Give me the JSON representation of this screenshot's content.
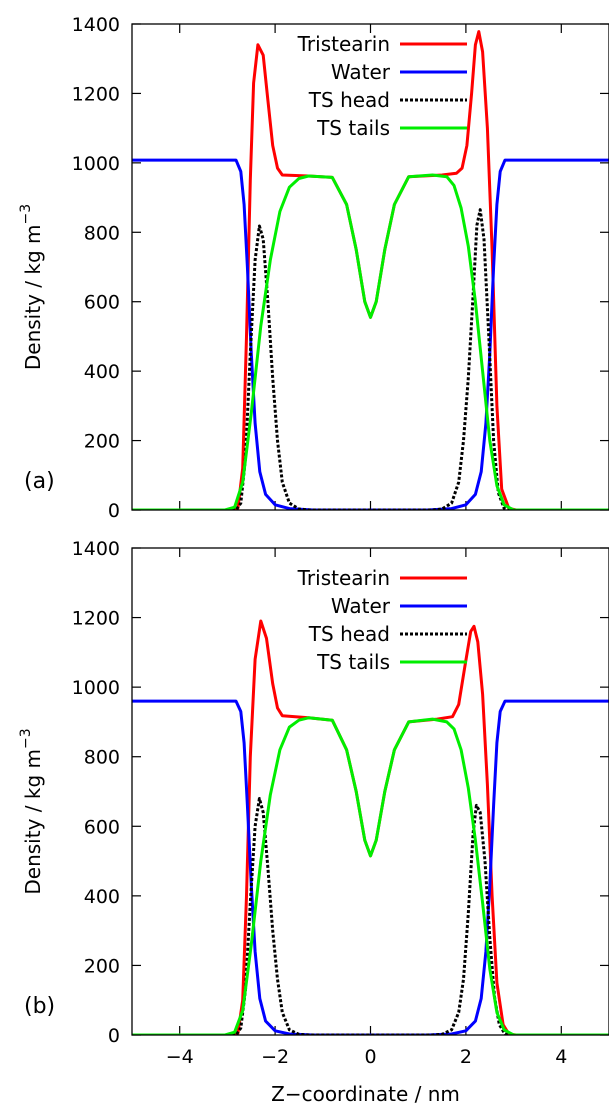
{
  "chart_data": [
    {
      "type": "line",
      "panel_label": "(a)",
      "xlabel": "",
      "ylabel": "Density / kg m",
      "ylabel_superscript": "−3",
      "xlim": [
        -5,
        5
      ],
      "ylim": [
        0,
        1400
      ],
      "x_ticks": [
        -4,
        -2,
        0,
        2,
        4
      ],
      "y_ticks": [
        0,
        200,
        400,
        600,
        800,
        1000,
        1200,
        1400
      ],
      "show_x_tick_labels": false,
      "grid": false,
      "legend_position": "top-center",
      "series": [
        {
          "name": "Tristearin",
          "color": "#ff0000",
          "dash": "solid",
          "points": [
            [
              -5,
              0
            ],
            [
              -2.95,
              0
            ],
            [
              -2.78,
              5
            ],
            [
              -2.68,
              120
            ],
            [
              -2.6,
              500
            ],
            [
              -2.52,
              950
            ],
            [
              -2.45,
              1230
            ],
            [
              -2.36,
              1340
            ],
            [
              -2.25,
              1310
            ],
            [
              -2.15,
              1180
            ],
            [
              -2.05,
              1050
            ],
            [
              -1.95,
              985
            ],
            [
              -1.85,
              965
            ],
            [
              -1.3,
              962
            ],
            [
              -0.8,
              958
            ],
            [
              -0.5,
              880
            ],
            [
              -0.3,
              750
            ],
            [
              -0.12,
              600
            ],
            [
              0,
              555
            ],
            [
              0.12,
              600
            ],
            [
              0.3,
              750
            ],
            [
              0.5,
              880
            ],
            [
              0.8,
              960
            ],
            [
              1.5,
              965
            ],
            [
              1.8,
              970
            ],
            [
              1.92,
              985
            ],
            [
              2.02,
              1050
            ],
            [
              2.12,
              1200
            ],
            [
              2.2,
              1340
            ],
            [
              2.27,
              1378
            ],
            [
              2.35,
              1320
            ],
            [
              2.45,
              1100
            ],
            [
              2.55,
              750
            ],
            [
              2.65,
              300
            ],
            [
              2.75,
              60
            ],
            [
              2.9,
              5
            ],
            [
              3.05,
              0
            ],
            [
              5,
              0
            ]
          ]
        },
        {
          "name": "Water",
          "color": "#0000ff",
          "dash": "solid",
          "points": [
            [
              -5,
              1008
            ],
            [
              -2.82,
              1008
            ],
            [
              -2.72,
              975
            ],
            [
              -2.65,
              880
            ],
            [
              -2.58,
              700
            ],
            [
              -2.5,
              450
            ],
            [
              -2.42,
              250
            ],
            [
              -2.32,
              110
            ],
            [
              -2.2,
              45
            ],
            [
              -2.0,
              15
            ],
            [
              -1.7,
              4
            ],
            [
              -1.2,
              0
            ],
            [
              1.2,
              0
            ],
            [
              1.7,
              4
            ],
            [
              2.0,
              15
            ],
            [
              2.2,
              45
            ],
            [
              2.32,
              110
            ],
            [
              2.42,
              250
            ],
            [
              2.5,
              450
            ],
            [
              2.58,
              700
            ],
            [
              2.65,
              880
            ],
            [
              2.72,
              975
            ],
            [
              2.82,
              1008
            ],
            [
              5,
              1008
            ]
          ]
        },
        {
          "name": "TS head",
          "color": "#000000",
          "dash": "dotted",
          "points": [
            [
              -5,
              0
            ],
            [
              -2.82,
              0
            ],
            [
              -2.72,
              20
            ],
            [
              -2.62,
              150
            ],
            [
              -2.52,
              450
            ],
            [
              -2.42,
              720
            ],
            [
              -2.33,
              818
            ],
            [
              -2.25,
              780
            ],
            [
              -2.15,
              600
            ],
            [
              -2.05,
              380
            ],
            [
              -1.95,
              200
            ],
            [
              -1.85,
              80
            ],
            [
              -1.7,
              20
            ],
            [
              -1.5,
              3
            ],
            [
              -1.3,
              0
            ],
            [
              1.3,
              0
            ],
            [
              1.5,
              3
            ],
            [
              1.7,
              20
            ],
            [
              1.85,
              80
            ],
            [
              1.95,
              200
            ],
            [
              2.05,
              380
            ],
            [
              2.15,
              620
            ],
            [
              2.23,
              820
            ],
            [
              2.3,
              865
            ],
            [
              2.38,
              780
            ],
            [
              2.48,
              500
            ],
            [
              2.58,
              200
            ],
            [
              2.68,
              50
            ],
            [
              2.8,
              5
            ],
            [
              2.9,
              0
            ],
            [
              5,
              0
            ]
          ]
        },
        {
          "name": "TS tails",
          "color": "#00ee00",
          "dash": "solid",
          "points": [
            [
              -5,
              0
            ],
            [
              -3.05,
              0
            ],
            [
              -2.85,
              8
            ],
            [
              -2.68,
              80
            ],
            [
              -2.5,
              280
            ],
            [
              -2.3,
              530
            ],
            [
              -2.1,
              720
            ],
            [
              -1.9,
              860
            ],
            [
              -1.7,
              930
            ],
            [
              -1.5,
              955
            ],
            [
              -1.3,
              962
            ],
            [
              -0.8,
              958
            ],
            [
              -0.5,
              880
            ],
            [
              -0.3,
              750
            ],
            [
              -0.12,
              600
            ],
            [
              0,
              555
            ],
            [
              0.12,
              600
            ],
            [
              0.3,
              750
            ],
            [
              0.5,
              880
            ],
            [
              0.8,
              960
            ],
            [
              1.3,
              965
            ],
            [
              1.6,
              960
            ],
            [
              1.75,
              935
            ],
            [
              1.9,
              870
            ],
            [
              2.05,
              760
            ],
            [
              2.2,
              600
            ],
            [
              2.35,
              400
            ],
            [
              2.5,
              200
            ],
            [
              2.65,
              70
            ],
            [
              2.8,
              15
            ],
            [
              3.0,
              0
            ],
            [
              5,
              0
            ]
          ]
        }
      ]
    },
    {
      "type": "line",
      "panel_label": "(b)",
      "xlabel": "Z−coordinate / nm",
      "ylabel": "Density / kg m",
      "ylabel_superscript": "−3",
      "xlim": [
        -5,
        5
      ],
      "ylim": [
        0,
        1400
      ],
      "x_ticks": [
        -4,
        -2,
        0,
        2,
        4
      ],
      "y_ticks": [
        0,
        200,
        400,
        600,
        800,
        1000,
        1200,
        1400
      ],
      "show_x_tick_labels": true,
      "grid": false,
      "legend_position": "top-center",
      "series": [
        {
          "name": "Tristearin",
          "color": "#ff0000",
          "dash": "solid",
          "points": [
            [
              -5,
              0
            ],
            [
              -2.95,
              0
            ],
            [
              -2.78,
              5
            ],
            [
              -2.68,
              100
            ],
            [
              -2.6,
              400
            ],
            [
              -2.52,
              800
            ],
            [
              -2.42,
              1080
            ],
            [
              -2.3,
              1190
            ],
            [
              -2.18,
              1140
            ],
            [
              -2.05,
              1010
            ],
            [
              -1.95,
              940
            ],
            [
              -1.85,
              918
            ],
            [
              -1.3,
              912
            ],
            [
              -0.8,
              905
            ],
            [
              -0.5,
              820
            ],
            [
              -0.3,
              700
            ],
            [
              -0.12,
              560
            ],
            [
              0,
              515
            ],
            [
              0.12,
              560
            ],
            [
              0.3,
              700
            ],
            [
              0.5,
              820
            ],
            [
              0.8,
              900
            ],
            [
              1.4,
              908
            ],
            [
              1.72,
              915
            ],
            [
              1.85,
              950
            ],
            [
              1.98,
              1060
            ],
            [
              2.1,
              1160
            ],
            [
              2.17,
              1175
            ],
            [
              2.25,
              1130
            ],
            [
              2.35,
              980
            ],
            [
              2.45,
              720
            ],
            [
              2.55,
              400
            ],
            [
              2.65,
              150
            ],
            [
              2.78,
              30
            ],
            [
              2.9,
              3
            ],
            [
              3.05,
              0
            ],
            [
              5,
              0
            ]
          ]
        },
        {
          "name": "Water",
          "color": "#0000ff",
          "dash": "solid",
          "points": [
            [
              -5,
              960
            ],
            [
              -2.82,
              960
            ],
            [
              -2.72,
              930
            ],
            [
              -2.65,
              840
            ],
            [
              -2.58,
              660
            ],
            [
              -2.5,
              430
            ],
            [
              -2.42,
              240
            ],
            [
              -2.32,
              105
            ],
            [
              -2.2,
              40
            ],
            [
              -2.0,
              12
            ],
            [
              -1.7,
              3
            ],
            [
              -1.2,
              0
            ],
            [
              1.2,
              0
            ],
            [
              1.7,
              3
            ],
            [
              2.0,
              12
            ],
            [
              2.2,
              40
            ],
            [
              2.32,
              105
            ],
            [
              2.42,
              240
            ],
            [
              2.5,
              430
            ],
            [
              2.58,
              660
            ],
            [
              2.65,
              840
            ],
            [
              2.72,
              930
            ],
            [
              2.82,
              960
            ],
            [
              5,
              960
            ]
          ]
        },
        {
          "name": "TS head",
          "color": "#000000",
          "dash": "dotted",
          "points": [
            [
              -5,
              0
            ],
            [
              -2.82,
              0
            ],
            [
              -2.72,
              20
            ],
            [
              -2.62,
              130
            ],
            [
              -2.52,
              380
            ],
            [
              -2.42,
              600
            ],
            [
              -2.33,
              680
            ],
            [
              -2.25,
              640
            ],
            [
              -2.15,
              480
            ],
            [
              -2.05,
              300
            ],
            [
              -1.95,
              160
            ],
            [
              -1.85,
              65
            ],
            [
              -1.7,
              15
            ],
            [
              -1.5,
              2
            ],
            [
              -1.3,
              0
            ],
            [
              1.3,
              0
            ],
            [
              1.5,
              2
            ],
            [
              1.7,
              15
            ],
            [
              1.85,
              65
            ],
            [
              1.95,
              160
            ],
            [
              2.05,
              350
            ],
            [
              2.15,
              580
            ],
            [
              2.22,
              660
            ],
            [
              2.3,
              640
            ],
            [
              2.4,
              500
            ],
            [
              2.5,
              280
            ],
            [
              2.6,
              110
            ],
            [
              2.7,
              30
            ],
            [
              2.82,
              3
            ],
            [
              2.9,
              0
            ],
            [
              5,
              0
            ]
          ]
        },
        {
          "name": "TS tails",
          "color": "#00ee00",
          "dash": "solid",
          "points": [
            [
              -5,
              0
            ],
            [
              -3.05,
              0
            ],
            [
              -2.85,
              8
            ],
            [
              -2.68,
              70
            ],
            [
              -2.5,
              260
            ],
            [
              -2.3,
              500
            ],
            [
              -2.1,
              690
            ],
            [
              -1.9,
              820
            ],
            [
              -1.7,
              885
            ],
            [
              -1.5,
              905
            ],
            [
              -1.3,
              912
            ],
            [
              -0.8,
              905
            ],
            [
              -0.5,
              820
            ],
            [
              -0.3,
              700
            ],
            [
              -0.12,
              560
            ],
            [
              0,
              515
            ],
            [
              0.12,
              560
            ],
            [
              0.3,
              700
            ],
            [
              0.5,
              820
            ],
            [
              0.8,
              900
            ],
            [
              1.3,
              908
            ],
            [
              1.6,
              900
            ],
            [
              1.75,
              880
            ],
            [
              1.9,
              820
            ],
            [
              2.05,
              710
            ],
            [
              2.2,
              560
            ],
            [
              2.35,
              380
            ],
            [
              2.5,
              190
            ],
            [
              2.65,
              65
            ],
            [
              2.8,
              15
            ],
            [
              3.0,
              0
            ],
            [
              5,
              0
            ]
          ]
        }
      ]
    }
  ]
}
